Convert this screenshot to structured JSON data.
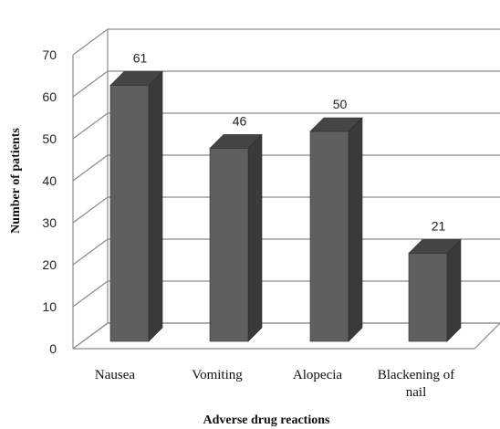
{
  "chart_data": {
    "type": "bar",
    "categories": [
      "Nausea",
      "Vomiting",
      "Alopecia",
      "Blackening of nail"
    ],
    "category_lines": [
      [
        "Nausea"
      ],
      [
        "Vomiting"
      ],
      [
        "Alopecia"
      ],
      [
        "Blackening of",
        "nail"
      ]
    ],
    "values": [
      61,
      46,
      50,
      21
    ],
    "data_labels": [
      "61",
      "46",
      "50",
      "21"
    ],
    "xlabel": "Adverse drug reactions",
    "ylabel": "Number of patients",
    "ylim": [
      0,
      70
    ],
    "yticks": [
      0,
      10,
      20,
      30,
      40,
      50,
      60,
      70
    ],
    "grid": true,
    "style": "3d-column",
    "colors": {
      "bar_front": "#5f5f5f",
      "bar_side": "#3a3a3a",
      "bar_top": "#454545",
      "grid": "#8c8c8c"
    }
  }
}
